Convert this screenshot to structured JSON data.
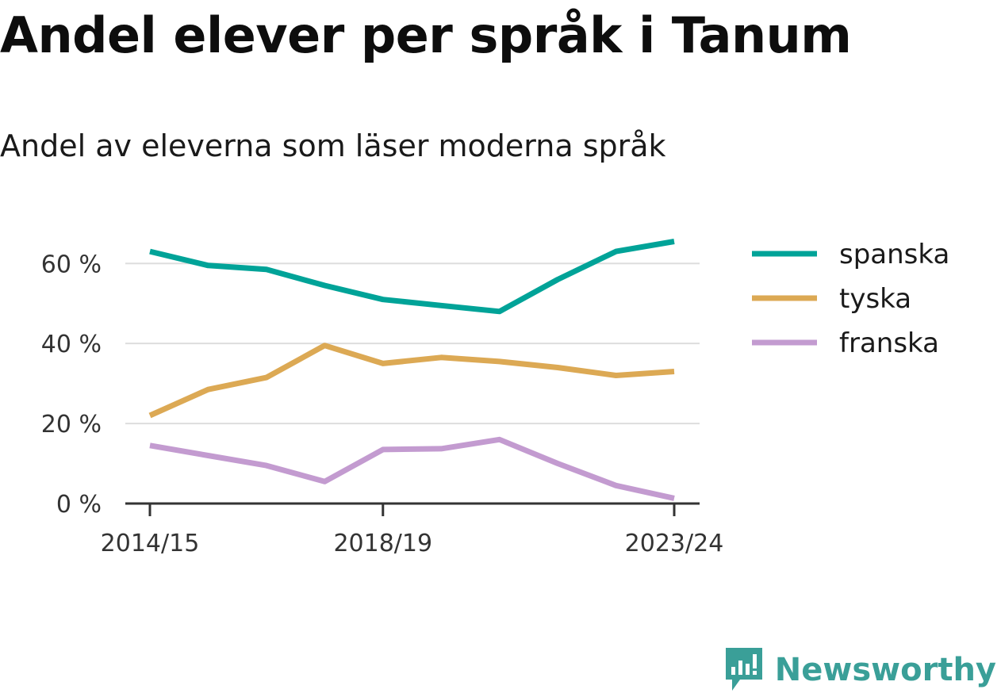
{
  "header": {
    "title": "Andel elever per språk i Tanum",
    "subtitle": "Andel av eleverna som läser moderna språk"
  },
  "brand": {
    "name": "Newsworthy",
    "icon": "newsworthy-logo-icon",
    "color": "#3a9f98"
  },
  "chart_data": {
    "type": "line",
    "x": [
      "2014/15",
      "2015/16",
      "2016/17",
      "2017/18",
      "2018/19",
      "2019/20",
      "2020/21",
      "2021/22",
      "2022/23",
      "2023/24"
    ],
    "x_tick_labels": [
      "2014/15",
      "2018/19",
      "2023/24"
    ],
    "y_ticks": [
      0,
      20,
      40,
      60
    ],
    "y_tick_labels": [
      "0 %",
      "20 %",
      "40 %",
      "60 %"
    ],
    "ylim": [
      0,
      66
    ],
    "grid": true,
    "legend_position": "right",
    "series": [
      {
        "name": "spanska",
        "color": "#00a398",
        "values": [
          63.0,
          59.5,
          58.5,
          54.5,
          51.0,
          49.5,
          48.0,
          56.0,
          63.0,
          65.5
        ]
      },
      {
        "name": "tyska",
        "color": "#dca954",
        "values": [
          22.0,
          28.5,
          31.5,
          39.5,
          35.0,
          36.5,
          35.5,
          34.0,
          32.0,
          33.0
        ]
      },
      {
        "name": "franska",
        "color": "#c39bd0",
        "values": [
          14.5,
          12.0,
          9.5,
          5.5,
          13.5,
          13.7,
          16.0,
          10.0,
          4.5,
          1.3
        ]
      }
    ]
  }
}
